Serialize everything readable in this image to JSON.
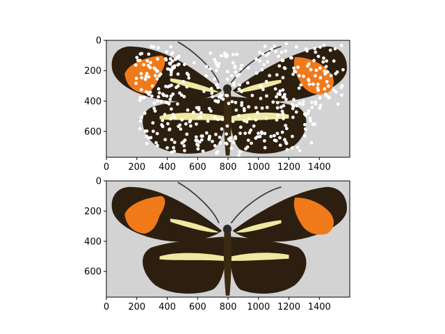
{
  "chart_data": [
    {
      "type": "image",
      "overlay": "scatter",
      "xlim": [
        0,
        1600
      ],
      "ylim": [
        770,
        0
      ],
      "xticks": [
        0,
        200,
        400,
        600,
        800,
        1000,
        1200,
        1400
      ],
      "yticks": [
        0,
        200,
        400,
        600
      ],
      "image": {
        "description": "butterfly photo, black wings with orange forewing patches and pale yellow hindwing bands, light gray background",
        "background_color": "#d3d3d3",
        "wing_color": "#2c1f0f",
        "patch_color": "#f07a1a",
        "band_color": "#eee9a0"
      },
      "scatter": {
        "marker_color": "#ffffff",
        "regions": [
          {
            "part": "left-forewing-edge",
            "x": [
              190,
              540
            ],
            "y": [
              40,
              420
            ],
            "count": 90
          },
          {
            "part": "right-forewing-edge",
            "x": [
              1000,
              1560
            ],
            "y": [
              20,
              450
            ],
            "count": 110
          },
          {
            "part": "body",
            "x": [
              640,
              900
            ],
            "y": [
              80,
              760
            ],
            "count": 90
          },
          {
            "part": "left-hindwing-edge",
            "x": [
              220,
              640
            ],
            "y": [
              440,
              740
            ],
            "count": 70
          },
          {
            "part": "right-hindwing-edge",
            "x": [
              900,
              1380
            ],
            "y": [
              430,
              740
            ],
            "count": 70
          },
          {
            "part": "orange-patches",
            "x": [
              180,
              1500
            ],
            "y": [
              100,
              390
            ],
            "count": 30
          }
        ]
      }
    },
    {
      "type": "image",
      "xlim": [
        0,
        1600
      ],
      "ylim": [
        770,
        0
      ],
      "xticks": [
        0,
        200,
        400,
        600,
        800,
        1000,
        1200,
        1400
      ],
      "yticks": [
        0,
        200,
        400,
        600
      ],
      "image": {
        "description": "same butterfly photo without overlay points",
        "background_color": "#d3d3d3",
        "wing_color": "#2c1f0f",
        "patch_color": "#f07a1a",
        "band_color": "#eee9a0"
      }
    }
  ]
}
